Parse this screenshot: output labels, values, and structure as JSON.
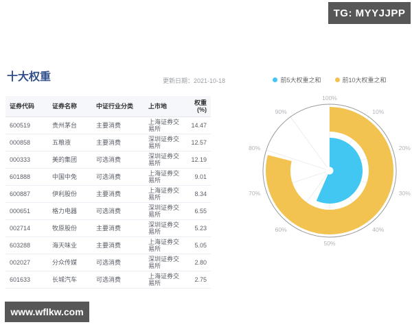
{
  "watermarks": {
    "tg_badge": "TG: MYYJJPP",
    "site_badge": "www.wflkw.com"
  },
  "section": {
    "title": "十大权重",
    "updated": "更新日期：2021-10-18"
  },
  "table": {
    "columns": [
      {
        "key": "code",
        "label": "证券代码",
        "align": "left"
      },
      {
        "key": "name",
        "label": "证券名称",
        "align": "left"
      },
      {
        "key": "industry",
        "label": "中证行业分类",
        "align": "left"
      },
      {
        "key": "listing",
        "label": "上市地",
        "align": "left"
      },
      {
        "key": "weight",
        "label": "权重(%)",
        "align": "right"
      }
    ],
    "rows": [
      {
        "code": "600519",
        "name": "贵州茅台",
        "industry": "主要消费",
        "listing": "上海证券交易所",
        "weight": "14.47"
      },
      {
        "code": "000858",
        "name": "五粮液",
        "industry": "主要消费",
        "listing": "深圳证券交易所",
        "weight": "12.57"
      },
      {
        "code": "000333",
        "name": "美的集团",
        "industry": "可选消费",
        "listing": "深圳证券交易所",
        "weight": "12.19"
      },
      {
        "code": "601888",
        "name": "中国中免",
        "industry": "可选消费",
        "listing": "上海证券交易所",
        "weight": "9.01"
      },
      {
        "code": "600887",
        "name": "伊利股份",
        "industry": "主要消费",
        "listing": "上海证券交易所",
        "weight": "8.34"
      },
      {
        "code": "000651",
        "name": "格力电器",
        "industry": "可选消费",
        "listing": "深圳证券交易所",
        "weight": "6.55"
      },
      {
        "code": "002714",
        "name": "牧原股份",
        "industry": "主要消费",
        "listing": "深圳证券交易所",
        "weight": "5.23"
      },
      {
        "code": "603288",
        "name": "海天味业",
        "industry": "主要消费",
        "listing": "上海证券交易所",
        "weight": "5.05"
      },
      {
        "code": "002027",
        "name": "分众传媒",
        "industry": "可选消费",
        "listing": "深圳证券交易所",
        "weight": "2.80"
      },
      {
        "code": "601633",
        "name": "长城汽车",
        "industry": "可选消费",
        "listing": "上海证券交易所",
        "weight": "2.75"
      }
    ]
  },
  "chart_data": {
    "type": "pie",
    "subtype": "radial-progress-rings",
    "max": 100,
    "unit": "%",
    "start_angle_deg": 0,
    "direction": "clockwise",
    "angle_ticks": [
      "10%",
      "20%",
      "30%",
      "40%",
      "50%",
      "60%",
      "70%",
      "80%",
      "90%",
      "100%"
    ],
    "legend_position": "top",
    "series": [
      {
        "name": "前5大权重之和",
        "value": 56.58,
        "color": "#41c7f2",
        "ring": "inner"
      },
      {
        "name": "前10大权重之和",
        "value": 78.96,
        "color": "#f3c351",
        "ring": "outer"
      }
    ],
    "grid_spoke_color": "#ededed",
    "axis_circle_color": "#999999"
  },
  "colors": {
    "title": "#31508c",
    "badge_bg": "#575757",
    "top5_accent": "#41c7f2",
    "top10_accent": "#f3c351"
  }
}
